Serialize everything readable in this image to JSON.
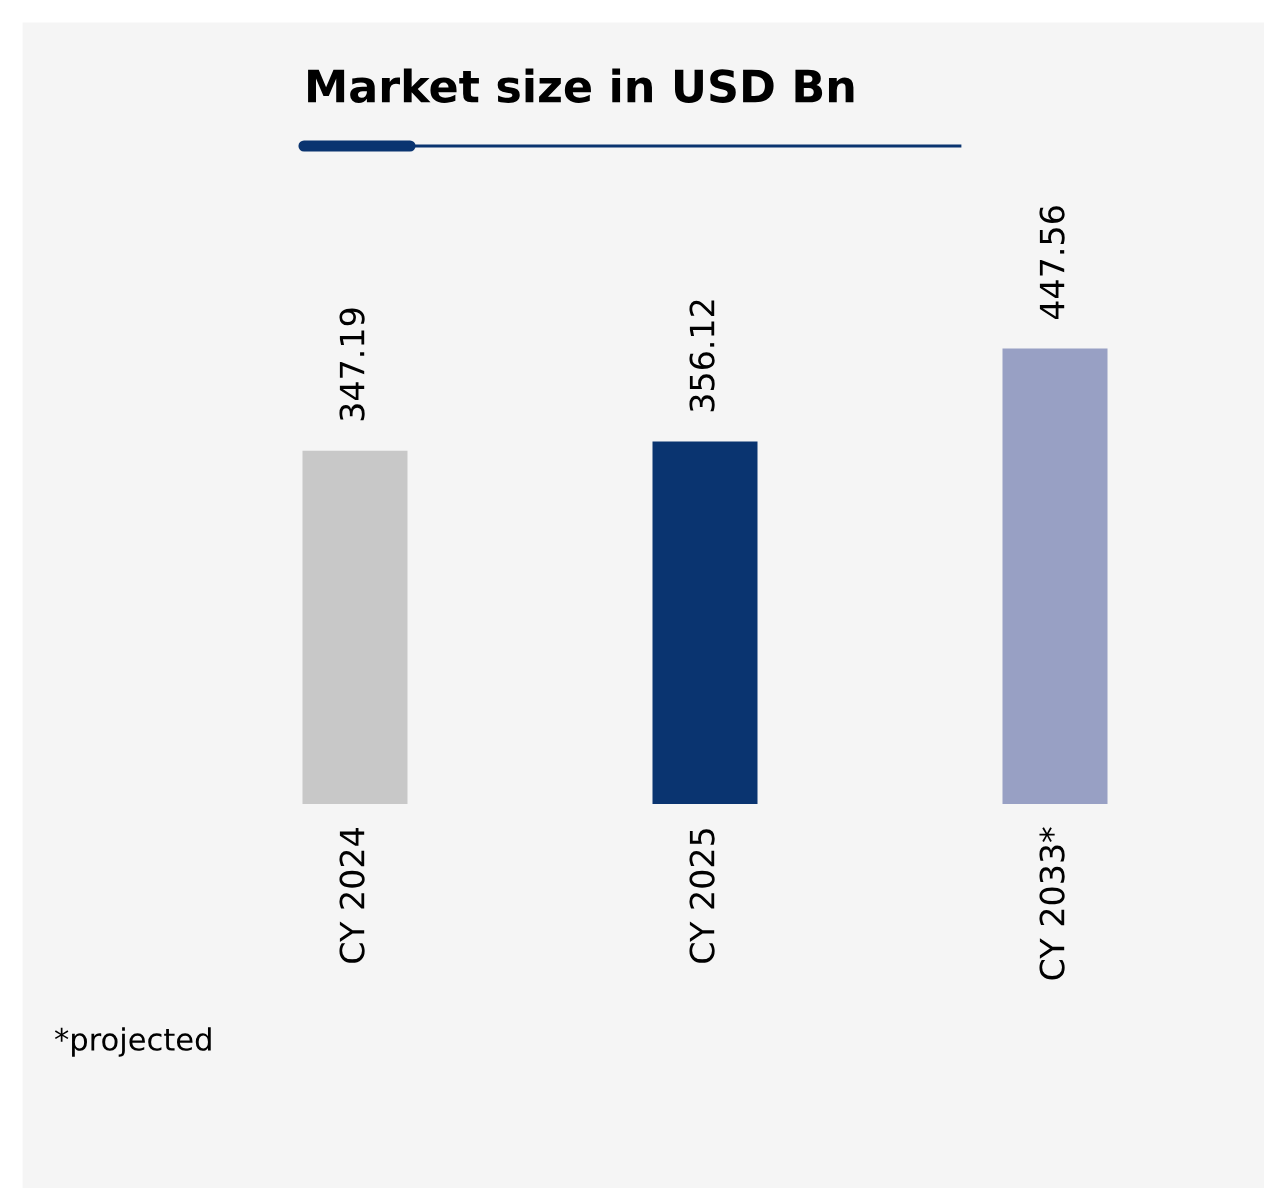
{
  "chart_data": {
    "type": "bar",
    "title": "Market size in USD Bn",
    "categories": [
      "CY 2024",
      "CY 2025",
      "CY 2033*"
    ],
    "values": [
      347.19,
      356.12,
      447.56
    ],
    "colors": [
      "#c8c8c8",
      "#0a3470",
      "#98a0c4"
    ],
    "data_labels": true,
    "grid": false,
    "legend": false,
    "annotations": [
      "*projected"
    ]
  }
}
